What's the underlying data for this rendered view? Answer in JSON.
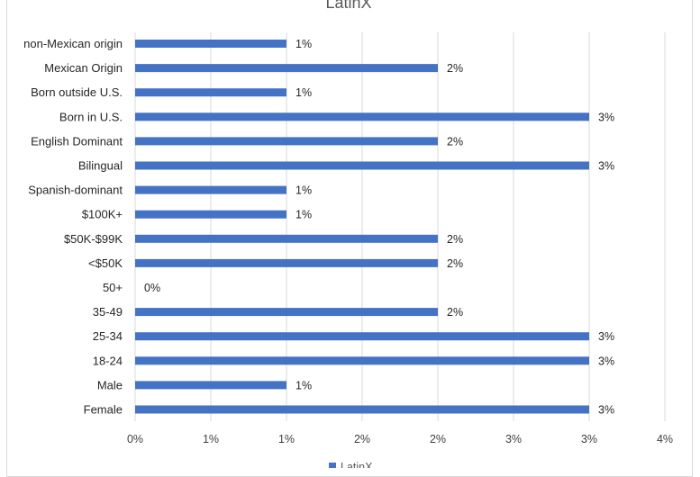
{
  "chart_data": {
    "type": "bar",
    "orientation": "horizontal",
    "title": "LatinX",
    "categories": [
      "non-Mexican origin",
      "Mexican Origin",
      "Born outside U.S.",
      "Born in U.S.",
      "English Dominant",
      "Bilingual",
      "Spanish-dominant",
      "$100K+",
      "$50K-$99K",
      "<$50K",
      "50+",
      "35-49",
      "25-34",
      "18-24",
      "Male",
      "Female"
    ],
    "series": [
      {
        "name": "LatinX",
        "color": "#4472c4",
        "values": [
          0.01,
          0.02,
          0.01,
          0.03,
          0.02,
          0.03,
          0.01,
          0.01,
          0.02,
          0.02,
          0.0,
          0.02,
          0.03,
          0.03,
          0.01,
          0.03
        ],
        "labels": [
          "1%",
          "2%",
          "1%",
          "3%",
          "2%",
          "3%",
          "1%",
          "1%",
          "2%",
          "2%",
          "0%",
          "2%",
          "3%",
          "3%",
          "1%",
          "3%"
        ]
      }
    ],
    "xlim": [
      0,
      0.035
    ],
    "x_ticks": [
      0,
      0.005,
      0.01,
      0.015,
      0.02,
      0.025,
      0.03,
      0.035
    ],
    "x_tick_labels": [
      "0%",
      "1%",
      "1%",
      "2%",
      "2%",
      "3%",
      "3%",
      "4%"
    ],
    "xlabel": "",
    "ylabel": "",
    "grid": "vertical",
    "legend": "bottom"
  }
}
